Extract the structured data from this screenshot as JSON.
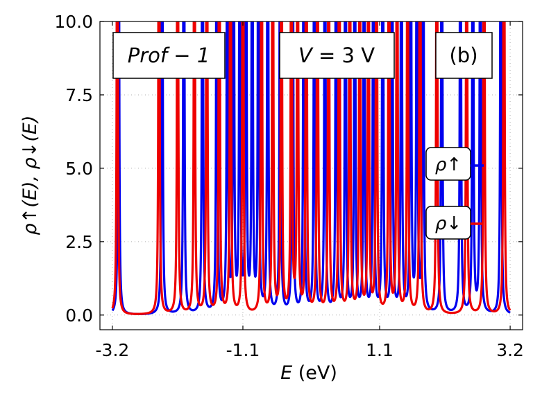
{
  "chart_data": {
    "type": "line",
    "xlabel_italic": "E",
    "xlabel_unit": " (eV)",
    "ylabel": "ρ↑(E), ρ↓(E)",
    "xlim": [
      -3.4,
      3.4
    ],
    "ylim": [
      -0.5,
      10.0
    ],
    "xticks": [
      -3.2,
      -1.1,
      1.1,
      3.2
    ],
    "xtick_labels": [
      "-3.2",
      "-1.1",
      "1.1",
      "3.2"
    ],
    "yticks": [
      0.0,
      2.5,
      5.0,
      7.5,
      10.0
    ],
    "ytick_labels": [
      "0.0",
      "2.5",
      "5.0",
      "7.5",
      "10.0"
    ],
    "grid": true,
    "annotations": {
      "profile": "Prof − 1",
      "voltage_italic": "V",
      "voltage_rest": " = 3 V",
      "panel": "(b)"
    },
    "legend": [
      {
        "label": "ρ↑",
        "color": "#0000ee"
      },
      {
        "label": "ρ↓",
        "color": "#ee0000"
      }
    ],
    "series": [
      {
        "name": "ρ↑",
        "color": "#0000ee",
        "peak_energies": [
          -3.1,
          -2.4,
          -2.05,
          -1.75,
          -1.52,
          -1.35,
          -1.25,
          -1.15,
          -1.05,
          -0.95,
          -0.85,
          -0.7,
          -0.5,
          -0.3,
          -0.12,
          0.05,
          0.22,
          0.4,
          0.55,
          0.7,
          0.85,
          1.0,
          1.15,
          1.3,
          1.45,
          1.6,
          1.7,
          1.8,
          2.1,
          2.4,
          2.6,
          2.72,
          3.05
        ]
      },
      {
        "name": "ρ↓",
        "color": "#ee0000",
        "peak_energies": [
          -3.12,
          -2.45,
          -2.15,
          -1.88,
          -1.68,
          -1.48,
          -1.3,
          -1.1,
          -0.8,
          -0.62,
          -0.48,
          -0.32,
          -0.22,
          -0.08,
          0.1,
          0.28,
          0.45,
          0.62,
          0.78,
          0.92,
          1.05,
          1.25,
          1.38,
          1.55,
          1.75,
          2.02,
          2.5,
          2.78,
          3.1
        ]
      }
    ]
  }
}
